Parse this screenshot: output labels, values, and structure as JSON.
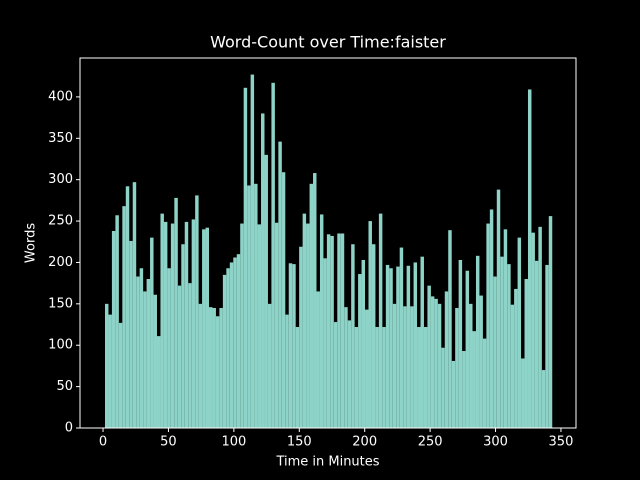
{
  "chart_data": {
    "type": "histogram",
    "title": "Word-Count over Time:faister",
    "xlabel": "Time in Minutes",
    "ylabel": "Words",
    "color": "#8dd3c7",
    "bins": [
      1.5,
      4.15,
      6.8,
      9.45,
      12.1,
      14.75,
      17.4,
      20.05,
      22.7,
      25.35,
      28,
      30.65,
      33.3,
      35.95,
      38.6,
      41.25,
      43.9,
      46.55,
      49.2,
      51.85,
      54.5,
      57.15,
      59.8,
      62.45,
      65.1,
      67.75,
      70.4,
      73.05,
      75.7,
      78.35,
      81,
      83.65,
      86.3,
      88.95,
      91.6,
      94.25,
      96.9,
      99.55,
      102.2,
      104.85,
      107.5,
      110.15,
      112.8,
      115.45,
      118.1,
      120.75,
      123.4,
      126.05,
      128.7,
      131.35,
      134,
      136.65,
      139.3,
      141.95,
      144.6,
      147.25,
      149.9,
      152.55,
      155.2,
      157.85,
      160.5,
      163.15,
      165.8,
      168.45,
      171.1,
      173.75,
      176.4,
      179.05,
      181.7,
      184.35,
      187,
      189.65,
      192.3,
      194.95,
      197.6,
      200.25,
      202.9,
      205.55,
      208.2,
      210.85,
      213.5,
      216.15,
      218.8,
      221.45,
      224.1,
      226.75,
      229.4,
      232.05,
      234.7,
      237.35,
      240,
      242.65,
      245.3,
      247.95,
      250.6,
      253.25,
      255.9,
      258.55,
      261.2,
      263.85,
      266.5,
      269.15,
      271.8,
      274.45,
      277.1,
      279.75,
      282.4,
      285.05,
      287.7,
      290.35,
      293,
      295.65,
      298.3,
      300.95,
      303.6,
      306.25,
      308.9,
      311.55,
      314.2,
      316.85,
      319.5,
      322.15,
      324.8,
      327.45,
      330.1,
      332.75,
      335.4,
      338.05,
      340.7,
      343.35
    ],
    "counts": [
      150,
      137,
      238,
      257,
      127,
      268,
      292,
      226,
      297,
      183,
      193,
      165,
      180,
      230,
      161,
      111,
      259,
      249,
      193,
      247,
      278,
      172,
      222,
      249,
      175,
      252,
      281,
      150,
      240,
      242,
      146,
      145,
      135,
      145,
      185,
      193,
      200,
      206,
      210,
      247,
      411,
      293,
      427,
      295,
      246,
      380,
      330,
      150,
      417,
      248,
      346,
      309,
      137,
      199,
      198,
      122,
      219,
      259,
      247,
      295,
      308,
      165,
      258,
      205,
      234,
      232,
      128,
      235,
      235,
      146,
      130,
      222,
      122,
      186,
      203,
      143,
      250,
      222,
      122,
      259,
      122,
      197,
      193,
      150,
      195,
      218,
      147,
      196,
      147,
      200,
      122,
      207,
      122,
      172,
      159,
      156,
      150,
      97,
      165,
      239,
      81,
      145,
      203,
      93,
      190,
      150,
      117,
      208,
      160,
      108,
      247,
      264,
      183,
      288,
      207,
      240,
      198,
      149,
      168,
      230,
      84,
      180,
      409,
      236,
      202,
      243,
      70,
      197,
      256
    ],
    "xlim": [
      -17.6,
      361.5
    ],
    "ylim": [
      0,
      447
    ],
    "xticks": [
      0,
      50,
      100,
      150,
      200,
      250,
      300,
      350
    ],
    "yticks": [
      0,
      50,
      100,
      150,
      200,
      250,
      300,
      350,
      400
    ]
  }
}
